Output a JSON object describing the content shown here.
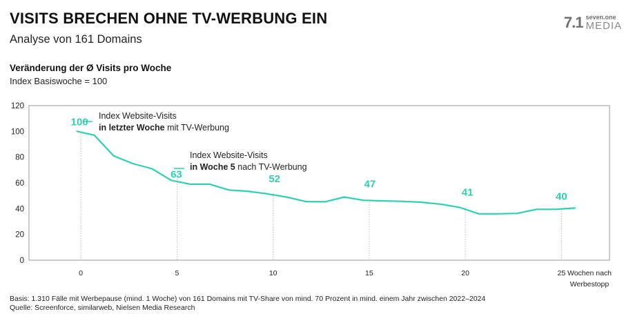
{
  "header": {
    "title": "VISITS BRECHEN OHNE TV-WERBUNG EIN",
    "subtitle": "Analyse von 161 Domains"
  },
  "logo": {
    "mark": "7.1",
    "top": "seven.one",
    "bottom": "MEDIA"
  },
  "footer": {
    "basis": "Basis: 1.310 Fälle mit Werbepause (mind. 1 Woche) von 161 Domains mit TV-Share von mind. 70 Prozent in mind. einem Jahr zwischen 2022–2024",
    "source": "Quelle: Screenforce, similarweb, Nielsen Media Research"
  },
  "colors": {
    "line": "#2fcfb0",
    "label": "#2fcfb0",
    "axis": "#9a9a9a",
    "guide": "#bdbdbd"
  },
  "chart_data": {
    "type": "line",
    "title": "Veränderung der Ø Visits pro Woche",
    "subtitle": "Index Basiswoche = 100",
    "xlabel": "Wochen nach Werbestopp",
    "xlabel_lines": [
      "Wochen nach",
      "Werbestopp"
    ],
    "ylabel": "",
    "xlim": [
      -2.7,
      27.5
    ],
    "ylim": [
      0,
      120
    ],
    "xticks": [
      0,
      5,
      10,
      15,
      20,
      25
    ],
    "yticks": [
      0,
      20,
      40,
      60,
      80,
      100,
      120
    ],
    "grid": false,
    "series": [
      {
        "name": "Index Website-Visits",
        "x": [
          -0.2,
          0.7,
          1.7,
          2.7,
          3.7,
          4.7,
          5.7,
          6.7,
          7.7,
          8.7,
          9.7,
          10.7,
          11.7,
          12.7,
          13.7,
          14.7,
          15.7,
          16.7,
          17.7,
          18.7,
          19.7,
          20.7,
          21.7,
          22.7,
          23.7,
          24.7,
          25.7
        ],
        "y": [
          100,
          97,
          81,
          75,
          71,
          62,
          59,
          59,
          54.5,
          53.5,
          51.5,
          49,
          45.5,
          45.3,
          49,
          46.5,
          46,
          45.7,
          45,
          43.5,
          41,
          36,
          36,
          36.3,
          39.5,
          39.5,
          40.5
        ]
      }
    ],
    "data_labels": [
      {
        "x": 0,
        "y": 100,
        "text": "100"
      },
      {
        "x": 5,
        "y": 63,
        "text": "63"
      },
      {
        "x": 10,
        "y": 52,
        "text": "52"
      },
      {
        "x": 15,
        "y": 47,
        "text": "47"
      },
      {
        "x": 20,
        "y": 41,
        "text": "41"
      },
      {
        "x": 25,
        "y": 40,
        "text": "40"
      }
    ],
    "annotations": [
      {
        "for": "100",
        "line1": "Index Website-Visits",
        "bold": "in letzter Woche",
        "rest": " mit TV-Werbung"
      },
      {
        "for": "63",
        "line1": "Index Website-Visits",
        "bold": "in Woche 5",
        "rest": " nach TV-Werbung"
      }
    ]
  }
}
